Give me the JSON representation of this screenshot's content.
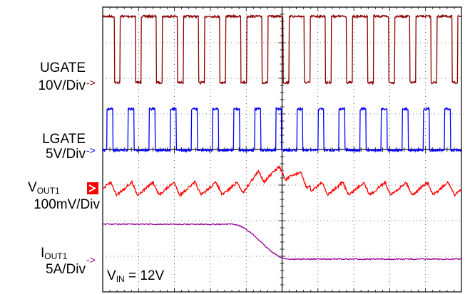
{
  "chart_data": {
    "type": "line",
    "grid": true,
    "channels": [
      {
        "name_main": "UGATE",
        "name_sub": "",
        "scale": "10V/Div",
        "color": "#8b0000"
      },
      {
        "name_main": "LGATE",
        "name_sub": "",
        "scale": "5V/Div",
        "color": "#0000ff"
      },
      {
        "name_main": "V",
        "name_sub": "OUT1",
        "scale": "100mV/Div",
        "color": "#ff0000"
      },
      {
        "name_main": "I",
        "name_sub": "OUT1",
        "scale": "5A/Div",
        "color": "#990099"
      }
    ],
    "annotation": {
      "main": "V",
      "sub": "IN",
      "suffix": " = 12V"
    },
    "colors": {
      "grid": "#000000",
      "background": "#ffffff",
      "marker_box": "#ff0000"
    }
  }
}
